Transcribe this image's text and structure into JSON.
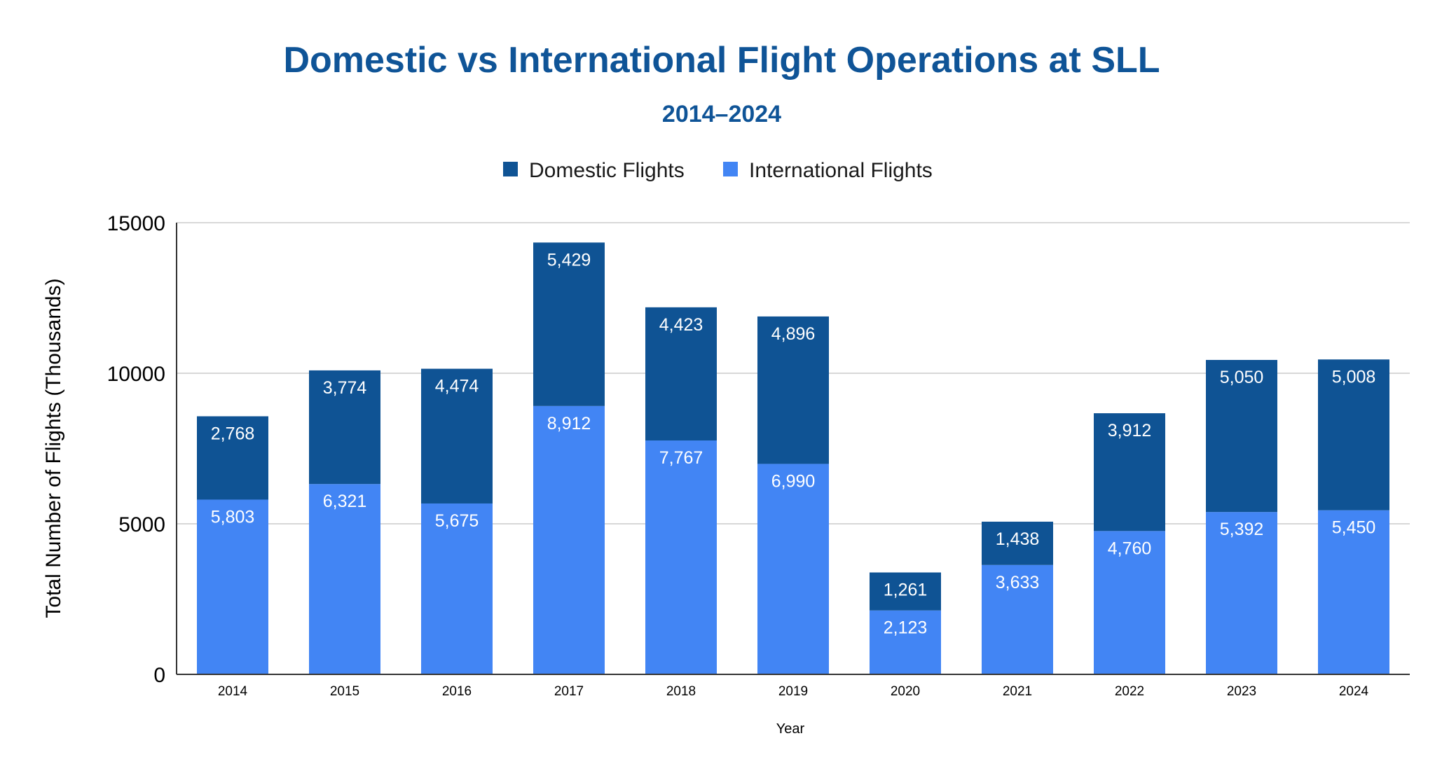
{
  "chart_data": {
    "type": "bar",
    "stacked": true,
    "title": "Domestic vs International Flight Operations at SLL",
    "subtitle": "2014–2024",
    "xlabel": "Year",
    "ylabel": "Total Number of Flights (Thousands)",
    "ylim": [
      0,
      15000
    ],
    "yticks": [
      0,
      5000,
      10000,
      15000
    ],
    "grid": true,
    "legend_position": "top-center",
    "categories": [
      "2014",
      "2015",
      "2016",
      "2017",
      "2018",
      "2019",
      "2020",
      "2021",
      "2022",
      "2023",
      "2024"
    ],
    "series": [
      {
        "name": "International Flights",
        "color": "#4285f4",
        "values": [
          5803,
          6321,
          5675,
          8912,
          7767,
          6990,
          2123,
          3633,
          4760,
          5392,
          5450
        ],
        "labels": [
          "5,803",
          "6,321",
          "5,675",
          "8,912",
          "7,767",
          "6,990",
          "2,123",
          "3,633",
          "4,760",
          "5,392",
          "5,450"
        ]
      },
      {
        "name": "Domestic Flights",
        "color": "#0f5394",
        "values": [
          2768,
          3774,
          4474,
          5429,
          4423,
          4896,
          1261,
          1438,
          3912,
          5050,
          5008
        ],
        "labels": [
          "2,768",
          "3,774",
          "4,474",
          "5,429",
          "4,423",
          "4,896",
          "1,261",
          "1,438",
          "3,912",
          "5,050",
          "5,008"
        ]
      }
    ],
    "legend_order": [
      "Domestic Flights",
      "International Flights"
    ]
  }
}
